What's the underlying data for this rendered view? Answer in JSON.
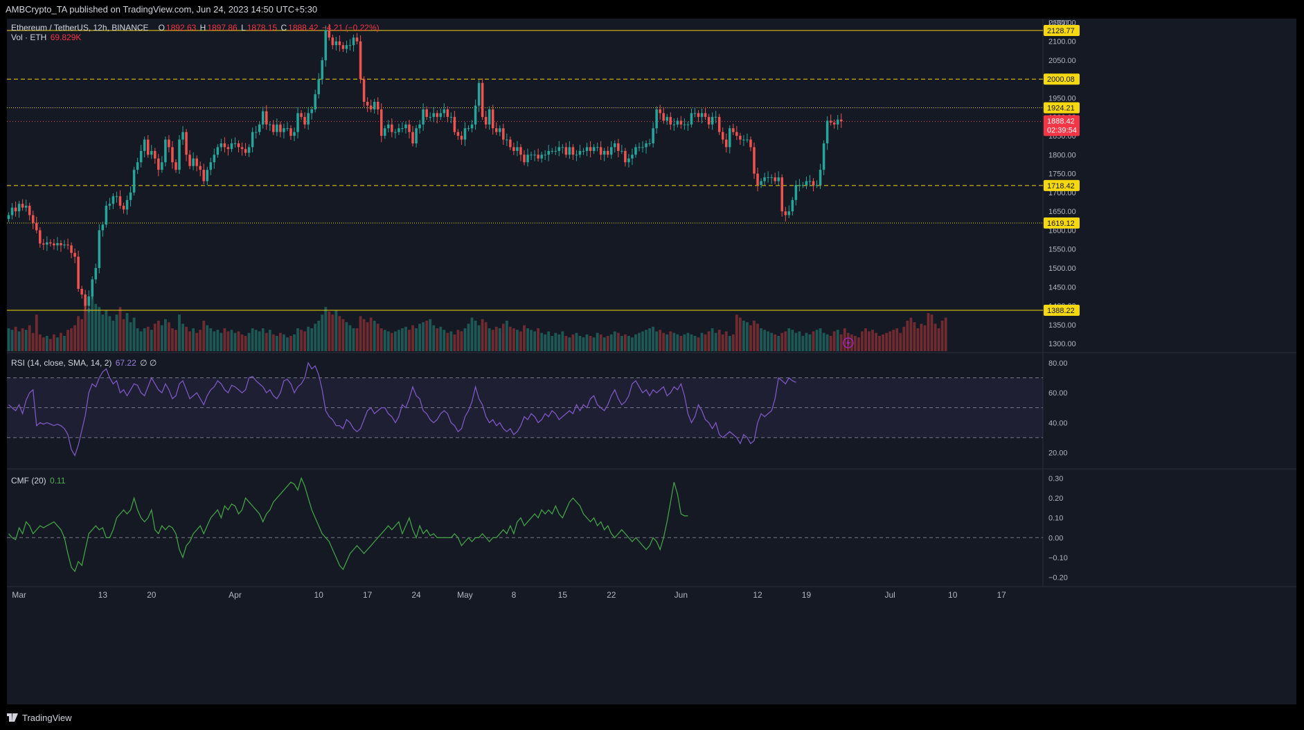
{
  "header": {
    "publisher": "AMBCrypto_TA published on TradingView.com, Jun 24, 2023 14:50 UTC+5:30"
  },
  "legend": {
    "symbol": "Ethereum / TetherUS, 12h, BINANCE",
    "open_label": "O",
    "open": "1892.63",
    "high_label": "H",
    "high": "1897.86",
    "low_label": "L",
    "low": "1878.15",
    "close_label": "C",
    "close": "1888.42",
    "change": "−4.21 (−0.22%)",
    "volume_title": "Vol · ETH",
    "volume_value": "69.829K",
    "rsi_title": "RSI (14, close, SMA, 14, 2)",
    "rsi_value": "67.22",
    "rsi_extra": "∅  ∅",
    "cmf_title": "CMF (20)",
    "cmf_value": "0.11"
  },
  "footer": {
    "brand": "TradingView"
  },
  "colors": {
    "background": "#151924",
    "up": "#26a69a",
    "down": "#ef5350",
    "level": "#f5d80f",
    "rsi": "#7e57c2",
    "cmf": "#43a047",
    "text": "#b2b5be"
  },
  "chart_data": [
    {
      "type": "candlestick",
      "title": "Ethereum / TetherUS, 12h, BINANCE",
      "currency_label": "USDT",
      "ylim": [
        1280,
        2160
      ],
      "y_ticks": [
        "2150.00",
        "2100.00",
        "2050.00",
        "2000.00",
        "1950.00",
        "1900.00",
        "1850.00",
        "1800.00",
        "1750.00",
        "1700.00",
        "1650.00",
        "1600.00",
        "1550.00",
        "1500.00",
        "1450.00",
        "1400.00",
        "1350.00",
        "1300.00"
      ],
      "current_price": {
        "value": "1888.42",
        "countdown": "02:39:54"
      },
      "levels": [
        {
          "value": 2128.77,
          "label": "2128.77",
          "style": "solid"
        },
        {
          "value": 2000.08,
          "label": "2000.08",
          "style": "dashed"
        },
        {
          "value": 1924.21,
          "label": "1924.21",
          "style": "dotted"
        },
        {
          "value": 1718.42,
          "label": "1718.42",
          "style": "dashed"
        },
        {
          "value": 1619.12,
          "label": "1619.12",
          "style": "dotted"
        },
        {
          "value": 1388.22,
          "label": "1388.22",
          "style": "solid"
        }
      ],
      "x_ticks": [
        {
          "label": "Mar",
          "index": 3
        },
        {
          "label": "13",
          "index": 27
        },
        {
          "label": "20",
          "index": 41
        },
        {
          "label": "Apr",
          "index": 65
        },
        {
          "label": "10",
          "index": 89
        },
        {
          "label": "17",
          "index": 103
        },
        {
          "label": "24",
          "index": 117
        },
        {
          "label": "May",
          "index": 131
        },
        {
          "label": "8",
          "index": 145
        },
        {
          "label": "15",
          "index": 159
        },
        {
          "label": "22",
          "index": 173
        },
        {
          "label": "Jun",
          "index": 193
        },
        {
          "label": "12",
          "index": 215
        },
        {
          "label": "19",
          "index": 229
        },
        {
          "label": "Jul",
          "index": 253
        },
        {
          "label": "10",
          "index": 271
        },
        {
          "label": "17",
          "index": 285
        }
      ],
      "total_slots": 297,
      "closes": [
        1640,
        1660,
        1650,
        1670,
        1660,
        1665,
        1640,
        1620,
        1600,
        1565,
        1562,
        1568,
        1565,
        1560,
        1566,
        1560,
        1562,
        1560,
        1540,
        1530,
        1445,
        1430,
        1400,
        1425,
        1470,
        1500,
        1600,
        1615,
        1665,
        1670,
        1690,
        1690,
        1665,
        1655,
        1680,
        1700,
        1760,
        1780,
        1810,
        1840,
        1800,
        1810,
        1790,
        1760,
        1780,
        1840,
        1820,
        1780,
        1760,
        1840,
        1860,
        1800,
        1770,
        1790,
        1770,
        1760,
        1730,
        1760,
        1780,
        1800,
        1820,
        1830,
        1820,
        1815,
        1830,
        1830,
        1820,
        1815,
        1805,
        1820,
        1860,
        1860,
        1880,
        1915,
        1880,
        1880,
        1860,
        1880,
        1860,
        1870,
        1870,
        1850,
        1860,
        1910,
        1900,
        1880,
        1910,
        1920,
        1960,
        2000,
        2050,
        2130,
        2110,
        2090,
        2100,
        2090,
        2080,
        2090,
        2090,
        2110,
        2100,
        2000,
        1940,
        1930,
        1920,
        1940,
        1920,
        1850,
        1870,
        1880,
        1860,
        1860,
        1870,
        1870,
        1880,
        1860,
        1830,
        1870,
        1880,
        1920,
        1900,
        1900,
        1910,
        1900,
        1910,
        1920,
        1900,
        1900,
        1860,
        1850,
        1840,
        1870,
        1870,
        1880,
        1930,
        1990,
        1900,
        1880,
        1920,
        1870,
        1860,
        1870,
        1840,
        1840,
        1820,
        1810,
        1820,
        1800,
        1780,
        1800,
        1800,
        1800,
        1790,
        1800,
        1800,
        1810,
        1810,
        1810,
        1820,
        1820,
        1800,
        1820,
        1800,
        1800,
        1810,
        1810,
        1820,
        1810,
        1820,
        1820,
        1800,
        1810,
        1800,
        1820,
        1830,
        1810,
        1810,
        1780,
        1790,
        1800,
        1820,
        1820,
        1820,
        1830,
        1830,
        1870,
        1920,
        1910,
        1890,
        1900,
        1880,
        1880,
        1890,
        1880,
        1880,
        1880,
        1910,
        1910,
        1900,
        1910,
        1900,
        1880,
        1900,
        1900,
        1860,
        1840,
        1820,
        1870,
        1860,
        1850,
        1840,
        1840,
        1840,
        1820,
        1750,
        1720,
        1730,
        1740,
        1740,
        1740,
        1730,
        1740,
        1650,
        1640,
        1650,
        1680,
        1720,
        1720,
        1720,
        1730,
        1730,
        1720,
        1720,
        1760,
        1830,
        1890,
        1885,
        1880,
        1893,
        1888
      ],
      "volume_bar_heights_relative_note": "volume bars drawn relative to shared volume scale",
      "volumes": [
        30,
        28,
        32,
        26,
        30,
        28,
        34,
        24,
        48,
        22,
        18,
        20,
        16,
        22,
        18,
        24,
        20,
        28,
        30,
        34,
        46,
        42,
        70,
        56,
        74,
        62,
        58,
        48,
        54,
        46,
        40,
        48,
        58,
        42,
        50,
        38,
        44,
        30,
        26,
        30,
        32,
        28,
        36,
        40,
        34,
        42,
        38,
        30,
        28,
        48,
        36,
        32,
        26,
        30,
        24,
        28,
        40,
        34,
        30,
        26,
        28,
        24,
        30,
        26,
        28,
        24,
        26,
        22,
        20,
        24,
        30,
        28,
        26,
        30,
        24,
        28,
        22,
        20,
        24,
        22,
        18,
        20,
        22,
        30,
        28,
        26,
        32,
        30,
        36,
        40,
        48,
        58,
        52,
        48,
        54,
        46,
        42,
        38,
        34,
        30,
        30,
        46,
        42,
        38,
        44,
        40,
        36,
        30,
        28,
        26,
        24,
        26,
        28,
        30,
        32,
        28,
        34,
        30,
        36,
        38,
        40,
        42,
        34,
        30,
        32,
        28,
        24,
        26,
        22,
        28,
        26,
        30,
        36,
        44,
        40,
        34,
        42,
        38,
        30,
        28,
        32,
        30,
        36,
        40,
        32,
        30,
        28,
        26,
        34,
        30,
        28,
        26,
        30,
        24,
        22,
        26,
        20,
        24,
        22,
        26,
        20,
        18,
        22,
        24,
        20,
        18,
        22,
        20,
        18,
        24,
        22,
        18,
        20,
        22,
        26,
        24,
        20,
        22,
        20,
        18,
        22,
        24,
        26,
        28,
        30,
        32,
        26,
        28,
        24,
        22,
        26,
        24,
        22,
        20,
        22,
        24,
        22,
        20,
        18,
        24,
        22,
        26,
        30,
        24,
        28,
        22,
        26,
        20,
        22,
        48,
        44,
        40,
        38,
        34,
        40,
        36,
        30,
        28,
        26,
        24,
        22,
        20,
        24,
        26,
        30,
        28,
        24,
        26,
        20,
        24,
        22,
        26,
        28,
        30,
        24,
        22,
        20,
        26,
        28,
        22,
        30,
        24,
        22,
        20,
        18,
        26,
        30,
        26,
        28,
        24,
        20,
        22,
        24,
        26,
        28,
        30,
        24,
        32,
        40,
        44,
        38,
        30,
        36,
        34,
        50,
        48,
        36,
        30,
        40,
        44
      ],
      "volume_ylim": [
        0,
        100
      ]
    },
    {
      "type": "line",
      "title": "RSI (14, close, SMA, 14, 2)",
      "ylim": [
        10,
        86
      ],
      "y_ticks": [
        "80.00",
        "60.00",
        "40.00",
        "20.00"
      ],
      "band": [
        30,
        70
      ],
      "midline": 50,
      "values": [
        52,
        50,
        48,
        52,
        46,
        55,
        60,
        62,
        38,
        40,
        39,
        40,
        39,
        38,
        39,
        38,
        36,
        32,
        22,
        18,
        25,
        35,
        45,
        60,
        66,
        64,
        70,
        74,
        76,
        70,
        66,
        68,
        60,
        62,
        58,
        62,
        66,
        65,
        60,
        58,
        64,
        70,
        66,
        62,
        60,
        66,
        62,
        56,
        58,
        66,
        68,
        62,
        56,
        58,
        60,
        56,
        52,
        58,
        62,
        64,
        68,
        66,
        62,
        60,
        65,
        64,
        62,
        60,
        62,
        70,
        71,
        68,
        66,
        64,
        60,
        62,
        58,
        56,
        60,
        68,
        69,
        66,
        60,
        64,
        66,
        70,
        80,
        76,
        78,
        72,
        62,
        48,
        44,
        42,
        38,
        38,
        36,
        42,
        40,
        36,
        34,
        36,
        42,
        48,
        50,
        46,
        48,
        50,
        50,
        46,
        44,
        40,
        44,
        52,
        50,
        56,
        64,
        58,
        56,
        48,
        46,
        42,
        40,
        42,
        46,
        48,
        46,
        40,
        38,
        34,
        36,
        44,
        48,
        54,
        64,
        56,
        52,
        44,
        40,
        42,
        38,
        40,
        36,
        34,
        36,
        32,
        34,
        38,
        44,
        42,
        46,
        44,
        40,
        42,
        46,
        44,
        48,
        46,
        42,
        44,
        46,
        48,
        46,
        52,
        48,
        52,
        50,
        56,
        58,
        52,
        50,
        48,
        52,
        58,
        62,
        56,
        52,
        54,
        58,
        66,
        68,
        64,
        60,
        62,
        58,
        62,
        60,
        62,
        64,
        58,
        60,
        64,
        62,
        66,
        58,
        46,
        40,
        44,
        52,
        48,
        42,
        40,
        36,
        40,
        32,
        30,
        32,
        34,
        32,
        30,
        26,
        32,
        30,
        26,
        28,
        40,
        46,
        44,
        46,
        48,
        56,
        70,
        68,
        66,
        70,
        68,
        67
      ],
      "plot_offset": 0
    },
    {
      "type": "line",
      "title": "CMF (20)",
      "ylim": [
        -0.24,
        0.34
      ],
      "y_ticks": [
        "0.30",
        "0.20",
        "0.10",
        "0.00",
        "−0.10",
        "−0.20"
      ],
      "zero_line": 0,
      "values": [
        0.02,
        0.0,
        -0.01,
        0.05,
        0.02,
        0.08,
        0.06,
        0.02,
        0.04,
        0.06,
        0.05,
        0.06,
        0.07,
        0.08,
        0.06,
        0.04,
        0.0,
        -0.08,
        -0.15,
        -0.17,
        -0.12,
        -0.14,
        -0.06,
        0.02,
        0.04,
        0.06,
        0.04,
        0.05,
        0.0,
        0.0,
        0.04,
        0.1,
        0.12,
        0.14,
        0.12,
        0.14,
        0.2,
        0.14,
        0.1,
        0.08,
        0.1,
        0.14,
        0.04,
        0.02,
        0.06,
        0.04,
        0.06,
        0.05,
        0.02,
        -0.06,
        -0.1,
        -0.04,
        -0.02,
        0.02,
        0.04,
        0.06,
        0.02,
        0.06,
        0.1,
        0.12,
        0.14,
        0.1,
        0.16,
        0.14,
        0.17,
        0.16,
        0.12,
        0.14,
        0.2,
        0.18,
        0.16,
        0.14,
        0.12,
        0.08,
        0.12,
        0.14,
        0.18,
        0.2,
        0.22,
        0.24,
        0.26,
        0.28,
        0.27,
        0.24,
        0.3,
        0.26,
        0.2,
        0.14,
        0.1,
        0.06,
        0.02,
        0.0,
        -0.02,
        -0.06,
        -0.1,
        -0.14,
        -0.16,
        -0.12,
        -0.08,
        -0.06,
        -0.04,
        -0.06,
        -0.08,
        -0.06,
        -0.04,
        -0.02,
        0.0,
        0.02,
        0.04,
        0.06,
        0.04,
        0.06,
        0.08,
        0.02,
        0.06,
        0.1,
        0.04,
        0.0,
        0.06,
        0.02,
        0.04,
        0.01,
        0.02,
        0.0,
        0.0,
        0.0,
        0.0,
        0.0,
        0.02,
        0.0,
        -0.04,
        -0.02,
        0.0,
        -0.02,
        0.0,
        0.0,
        0.02,
        0.0,
        -0.02,
        0.0,
        0.0,
        0.02,
        0.04,
        0.02,
        0.06,
        0.02,
        0.08,
        0.1,
        0.06,
        0.08,
        0.1,
        0.12,
        0.1,
        0.14,
        0.12,
        0.14,
        0.12,
        0.16,
        0.12,
        0.1,
        0.14,
        0.18,
        0.2,
        0.18,
        0.16,
        0.12,
        0.1,
        0.08,
        0.1,
        0.06,
        0.08,
        0.04,
        0.06,
        0.02,
        0.0,
        0.02,
        0.04,
        0.02,
        0.0,
        -0.02,
        0.0,
        -0.02,
        -0.04,
        -0.06,
        -0.04,
        0.0,
        -0.02,
        -0.06,
        0.0,
        0.08,
        0.18,
        0.28,
        0.22,
        0.12,
        0.11,
        0.11
      ]
    }
  ]
}
